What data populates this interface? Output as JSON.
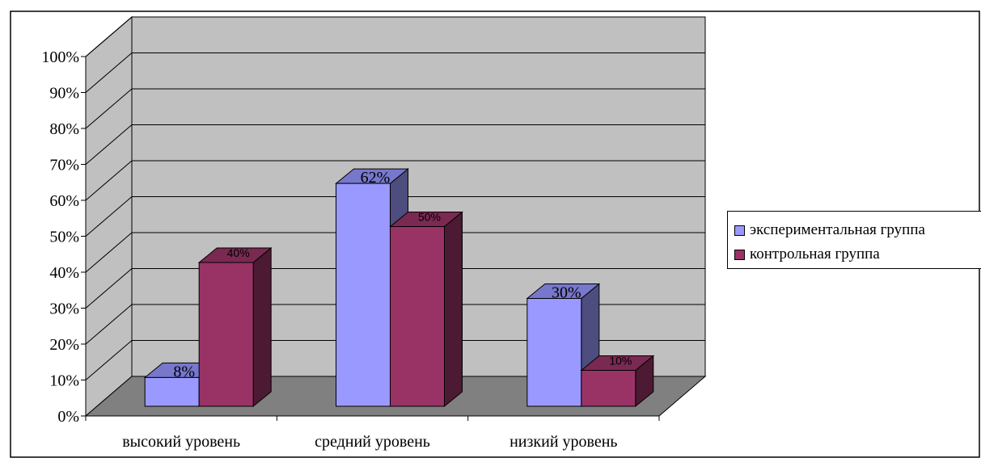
{
  "chart_data": {
    "type": "bar",
    "three_d": true,
    "categories": [
      "высокий уровень",
      "средний уровень",
      "низкий уровень"
    ],
    "series": [
      {
        "name": "экспериментальная группа",
        "values": [
          8,
          62,
          30
        ],
        "labels": [
          "8%",
          "62%",
          "30%"
        ],
        "color": "#9999ff",
        "side_color": "#4d4d80",
        "top_color": "#7777cc"
      },
      {
        "name": "контрольная группа",
        "values": [
          40,
          50,
          10
        ],
        "labels": [
          "40%",
          "50%",
          "10%"
        ],
        "color": "#993366",
        "side_color": "#4d1a33",
        "top_color": "#7a2952"
      }
    ],
    "y_ticks": [
      "0%",
      "10%",
      "20%",
      "30%",
      "40%",
      "50%",
      "60%",
      "70%",
      "80%",
      "90%",
      "100%"
    ],
    "ylim": [
      0,
      100
    ],
    "grid": true,
    "legend_position": "right",
    "wall_color": "#c0c0c0",
    "floor_color": "#808080"
  }
}
